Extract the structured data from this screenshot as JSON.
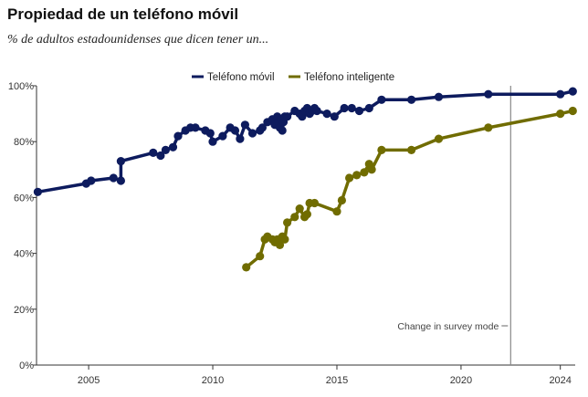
{
  "header": {
    "title": "Propiedad de un teléfono móvil",
    "subtitle": "% de adultos estadounidenses que dicen tener un..."
  },
  "colors": {
    "cell": "#0d1b5e",
    "smart": "#706c00",
    "axis": "#333333",
    "grid": "#cccccc",
    "marker_line": "#888888"
  },
  "chart_data": {
    "type": "line",
    "title": "Propiedad de un teléfono móvil",
    "subtitle": "% de adultos estadounidenses que dicen tener un...",
    "xlabel": "",
    "ylabel": "",
    "xlim": [
      2002.9,
      2024.6
    ],
    "ylim": [
      0,
      100
    ],
    "y_ticks": [
      0,
      20,
      40,
      60,
      80,
      100
    ],
    "y_tick_labels": [
      "0%",
      "20%",
      "40%",
      "60%",
      "80%",
      "100%"
    ],
    "x_ticks": [
      2005,
      2010,
      2015,
      2020,
      2024
    ],
    "x_tick_labels": [
      "2005",
      "2010",
      "2015",
      "2020",
      "2024"
    ],
    "grid": false,
    "legend_position": "top-center",
    "annotations": [
      {
        "x": 2022.0,
        "text": "Change in survey mode"
      }
    ],
    "series": [
      {
        "name": "Teléfono móvil",
        "color": "#0d1b5e",
        "x": [
          2002.95,
          2004.9,
          2005.1,
          2006.0,
          2006.3,
          2006.3,
          2007.6,
          2007.9,
          2008.1,
          2008.4,
          2008.6,
          2008.9,
          2009.1,
          2009.3,
          2009.7,
          2009.9,
          2010.0,
          2010.4,
          2010.7,
          2010.9,
          2011.1,
          2011.3,
          2011.6,
          2011.9,
          2012.0,
          2012.2,
          2012.4,
          2012.5,
          2012.6,
          2012.65,
          2012.7,
          2012.75,
          2012.8,
          2012.85,
          2012.9,
          2013.0,
          2013.3,
          2013.5,
          2013.6,
          2013.7,
          2013.8,
          2013.9,
          2014.0,
          2014.1,
          2014.2,
          2014.6,
          2014.9,
          2015.3,
          2015.6,
          2015.9,
          2016.3,
          2016.8,
          2018.0,
          2019.1,
          2021.1,
          2024.0,
          2024.5
        ],
        "values": [
          62,
          65,
          66,
          67,
          66,
          73,
          76,
          75,
          77,
          78,
          82,
          84,
          85,
          85,
          84,
          83,
          80,
          82,
          85,
          84,
          81,
          86,
          83,
          84,
          85,
          87,
          88,
          86,
          89,
          87,
          85,
          88,
          84,
          87,
          89,
          89,
          91,
          90,
          89,
          91,
          92,
          90,
          91,
          92,
          91,
          90,
          89,
          92,
          92,
          91,
          92,
          95,
          95,
          96,
          97,
          97,
          98
        ]
      },
      {
        "name": "Teléfono inteligente",
        "color": "#706c00",
        "x": [
          2011.35,
          2011.9,
          2012.1,
          2012.2,
          2012.4,
          2012.5,
          2012.6,
          2012.7,
          2012.8,
          2012.9,
          2013.0,
          2013.3,
          2013.5,
          2013.7,
          2013.8,
          2013.9,
          2014.1,
          2015.0,
          2015.2,
          2015.5,
          2015.8,
          2016.1,
          2016.3,
          2016.4,
          2016.8,
          2018.0,
          2019.1,
          2021.1,
          2024.0,
          2024.5
        ],
        "values": [
          35,
          39,
          45,
          46,
          45,
          44,
          45,
          43,
          46,
          45,
          51,
          53,
          56,
          53,
          54,
          58,
          58,
          55,
          59,
          67,
          68,
          69,
          72,
          70,
          77,
          77,
          81,
          85,
          90,
          91
        ]
      }
    ]
  }
}
